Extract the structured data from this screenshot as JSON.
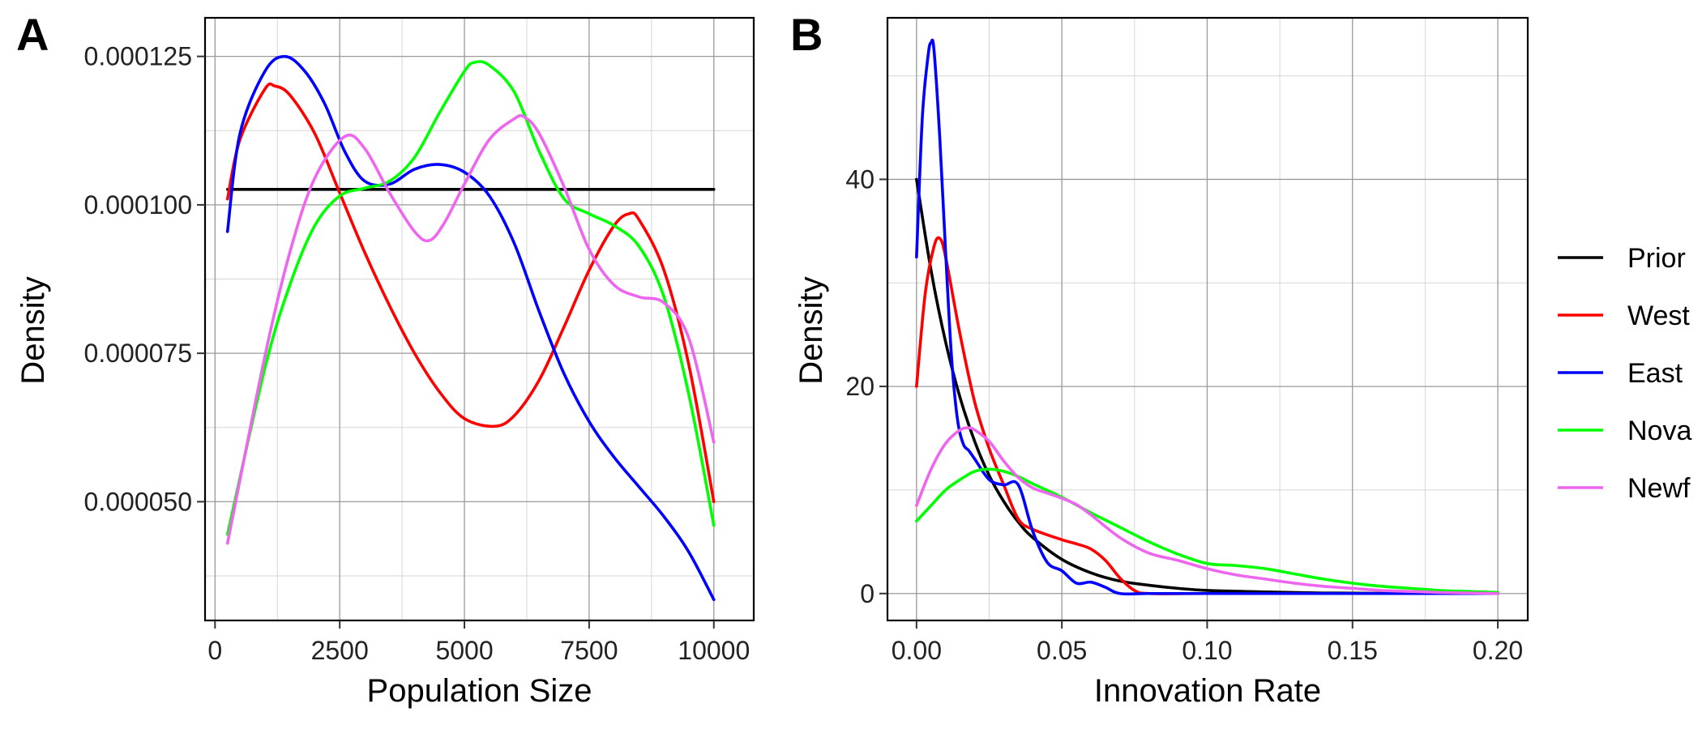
{
  "chart_data": [
    {
      "panel_label": "A",
      "type": "line",
      "xlabel": "Population Size",
      "ylabel": "Density",
      "xlim": [
        -200,
        10800
      ],
      "ylim": [
        3e-05,
        0.0001315
      ],
      "x_ticks": [
        0,
        2500,
        5000,
        7500,
        10000
      ],
      "x_tick_labels": [
        "0",
        "2500",
        "5000",
        "7500",
        "10000"
      ],
      "y_ticks": [
        5e-05,
        7.5e-05,
        0.0001,
        0.000125
      ],
      "y_tick_labels": [
        "0.000050",
        "0.000075",
        "0.000100",
        "0.000125"
      ],
      "grid": true,
      "series": [
        {
          "name": "Prior",
          "color": "#000000",
          "x": [
            250,
            10000
          ],
          "y": [
            0.0001026,
            0.0001026
          ]
        },
        {
          "name": "West",
          "color": "#ff0000",
          "x": [
            250,
            500,
            1000,
            1200,
            1500,
            2000,
            2500,
            3000,
            3500,
            4000,
            4500,
            5000,
            5600,
            6000,
            6500,
            7000,
            7500,
            8000,
            8300,
            8500,
            9000,
            9500,
            10000
          ],
          "y": [
            0.000101,
            0.000111,
            0.0001195,
            0.00012,
            0.0001185,
            0.000112,
            0.000102,
            9.2e-05,
            8.3e-05,
            7.5e-05,
            6.85e-05,
            6.4e-05,
            6.27e-05,
            6.45e-05,
            7.05e-05,
            7.95e-05,
            8.9e-05,
            9.65e-05,
            9.85e-05,
            9.75e-05,
            8.9e-05,
            7.3e-05,
            5e-05
          ]
        },
        {
          "name": "East",
          "color": "#0000ff",
          "x": [
            250,
            500,
            1000,
            1400,
            1800,
            2200,
            2600,
            3000,
            3500,
            4000,
            4500,
            5000,
            5500,
            6000,
            6500,
            7000,
            7500,
            8000,
            8500,
            9000,
            9500,
            10000
          ],
          "y": [
            9.55e-05,
            0.000112,
            0.0001225,
            0.000125,
            0.0001225,
            0.000117,
            0.000109,
            0.000104,
            0.0001035,
            0.000106,
            0.0001068,
            0.0001055,
            0.0001015,
            9.35e-05,
            8.2e-05,
            7.15e-05,
            6.35e-05,
            5.75e-05,
            5.25e-05,
            4.75e-05,
            4.15e-05,
            3.35e-05
          ]
        },
        {
          "name": "Nova",
          "color": "#00ff00",
          "x": [
            250,
            1000,
            1500,
            2000,
            2500,
            3000,
            3500,
            4000,
            4500,
            5000,
            5200,
            5500,
            6000,
            6500,
            7000,
            7500,
            8000,
            8500,
            9000,
            9500,
            10000
          ],
          "y": [
            4.45e-05,
            7.25e-05,
            8.65e-05,
            9.65e-05,
            0.0001015,
            0.0001028,
            0.000104,
            0.000108,
            0.0001155,
            0.0001225,
            0.000124,
            0.0001235,
            0.000119,
            0.000109,
            0.000101,
            9.85e-05,
            9.65e-05,
            9.3e-05,
            8.45e-05,
            6.8e-05,
            4.6e-05
          ]
        },
        {
          "name": "Newf",
          "color": "#ee66ee",
          "x": [
            250,
            1000,
            1500,
            2000,
            2600,
            3000,
            3500,
            4000,
            4300,
            4600,
            5000,
            5500,
            6000,
            6200,
            6500,
            7000,
            7500,
            8000,
            8500,
            9000,
            9500,
            10000
          ],
          "y": [
            4.3e-05,
            7.45e-05,
            9.2e-05,
            0.0001045,
            0.0001115,
            0.0001095,
            0.000102,
            9.55e-05,
            9.4e-05,
            9.7e-05,
            0.0001035,
            0.000111,
            0.0001145,
            0.0001148,
            0.000112,
            0.000103,
            9.25e-05,
            8.65e-05,
            8.45e-05,
            8.35e-05,
            7.75e-05,
            6e-05
          ]
        }
      ]
    },
    {
      "panel_label": "B",
      "type": "line",
      "xlabel": "Innovation Rate",
      "ylabel": "Density",
      "xlim": [
        -0.01,
        0.2103
      ],
      "ylim": [
        -2.6,
        55.6
      ],
      "x_ticks": [
        0,
        0.05,
        0.1,
        0.15,
        0.2
      ],
      "x_tick_labels": [
        "0.00",
        "0.05",
        "0.10",
        "0.15",
        "0.20"
      ],
      "y_ticks": [
        0,
        20,
        40
      ],
      "y_tick_labels": [
        "0",
        "20",
        "40"
      ],
      "grid": true,
      "series": [
        {
          "name": "Prior",
          "color": "#000000",
          "x": [
            0,
            0.005,
            0.01,
            0.015,
            0.02,
            0.025,
            0.03,
            0.035,
            0.04,
            0.05,
            0.06,
            0.07,
            0.08,
            0.09,
            0.1,
            0.12,
            0.14,
            0.16,
            0.18,
            0.2
          ],
          "y": [
            40,
            31.2,
            24.3,
            18.9,
            14.7,
            11.4,
            8.9,
            6.9,
            5.4,
            3.3,
            2.0,
            1.2,
            0.8,
            0.5,
            0.3,
            0.15,
            0.05,
            0.02,
            0.01,
            0
          ]
        },
        {
          "name": "West",
          "color": "#ff0000",
          "x": [
            0,
            0.003,
            0.006,
            0.008,
            0.01,
            0.015,
            0.02,
            0.025,
            0.03,
            0.035,
            0.04,
            0.05,
            0.055,
            0.06,
            0.065,
            0.07,
            0.075,
            0.08,
            0.1,
            0.15,
            0.2
          ],
          "y": [
            20,
            29,
            33.5,
            34.3,
            32.5,
            25,
            18.5,
            14,
            10.5,
            7.2,
            6.2,
            5.2,
            4.8,
            4.3,
            3.2,
            1.5,
            0.3,
            0,
            0,
            0,
            0
          ]
        },
        {
          "name": "East",
          "color": "#0000ff",
          "x": [
            0,
            0.002,
            0.004,
            0.005,
            0.006,
            0.008,
            0.01,
            0.012,
            0.014,
            0.016,
            0.018,
            0.02,
            0.025,
            0.03,
            0.035,
            0.04,
            0.045,
            0.05,
            0.055,
            0.06,
            0.065,
            0.07,
            0.08,
            0.1,
            0.2
          ],
          "y": [
            32.5,
            46,
            52,
            53.2,
            52.5,
            44,
            33,
            23,
            17,
            14.5,
            13.8,
            13,
            11,
            10.5,
            10.5,
            6,
            3,
            2.2,
            1,
            1.1,
            0.6,
            0,
            0,
            0,
            0
          ]
        },
        {
          "name": "Nova",
          "color": "#00ff00",
          "x": [
            0,
            0.005,
            0.01,
            0.015,
            0.02,
            0.025,
            0.03,
            0.035,
            0.04,
            0.05,
            0.06,
            0.07,
            0.08,
            0.09,
            0.1,
            0.11,
            0.12,
            0.13,
            0.14,
            0.15,
            0.16,
            0.17,
            0.18,
            0.19,
            0.2
          ],
          "y": [
            7,
            8.5,
            10,
            11,
            11.8,
            12,
            11.8,
            11.3,
            10.6,
            9.3,
            7.8,
            6.4,
            5,
            3.8,
            2.9,
            2.7,
            2.4,
            1.9,
            1.4,
            1.0,
            0.7,
            0.5,
            0.3,
            0.2,
            0.1
          ]
        },
        {
          "name": "Newf",
          "color": "#ee66ee",
          "x": [
            0,
            0.005,
            0.01,
            0.015,
            0.018,
            0.02,
            0.025,
            0.03,
            0.035,
            0.04,
            0.045,
            0.05,
            0.055,
            0.06,
            0.07,
            0.08,
            0.09,
            0.1,
            0.11,
            0.12,
            0.13,
            0.14,
            0.15,
            0.16,
            0.17,
            0.18,
            0.19,
            0.2
          ],
          "y": [
            8.5,
            12,
            14.5,
            15.8,
            16,
            15.8,
            14.7,
            12.8,
            11.2,
            10.2,
            9.7,
            9.2,
            8.6,
            7.6,
            5.4,
            3.9,
            3.2,
            2.4,
            1.8,
            1.4,
            1.0,
            0.7,
            0.5,
            0.3,
            0.2,
            0.1,
            0.05,
            0
          ]
        }
      ]
    }
  ],
  "legend": {
    "position": "right",
    "entries": [
      {
        "label": "Prior",
        "color": "#000000"
      },
      {
        "label": "West",
        "color": "#ff0000"
      },
      {
        "label": "East",
        "color": "#0000ff"
      },
      {
        "label": "Nova",
        "color": "#00ff00"
      },
      {
        "label": "Newf",
        "color": "#ee66ee"
      }
    ]
  }
}
